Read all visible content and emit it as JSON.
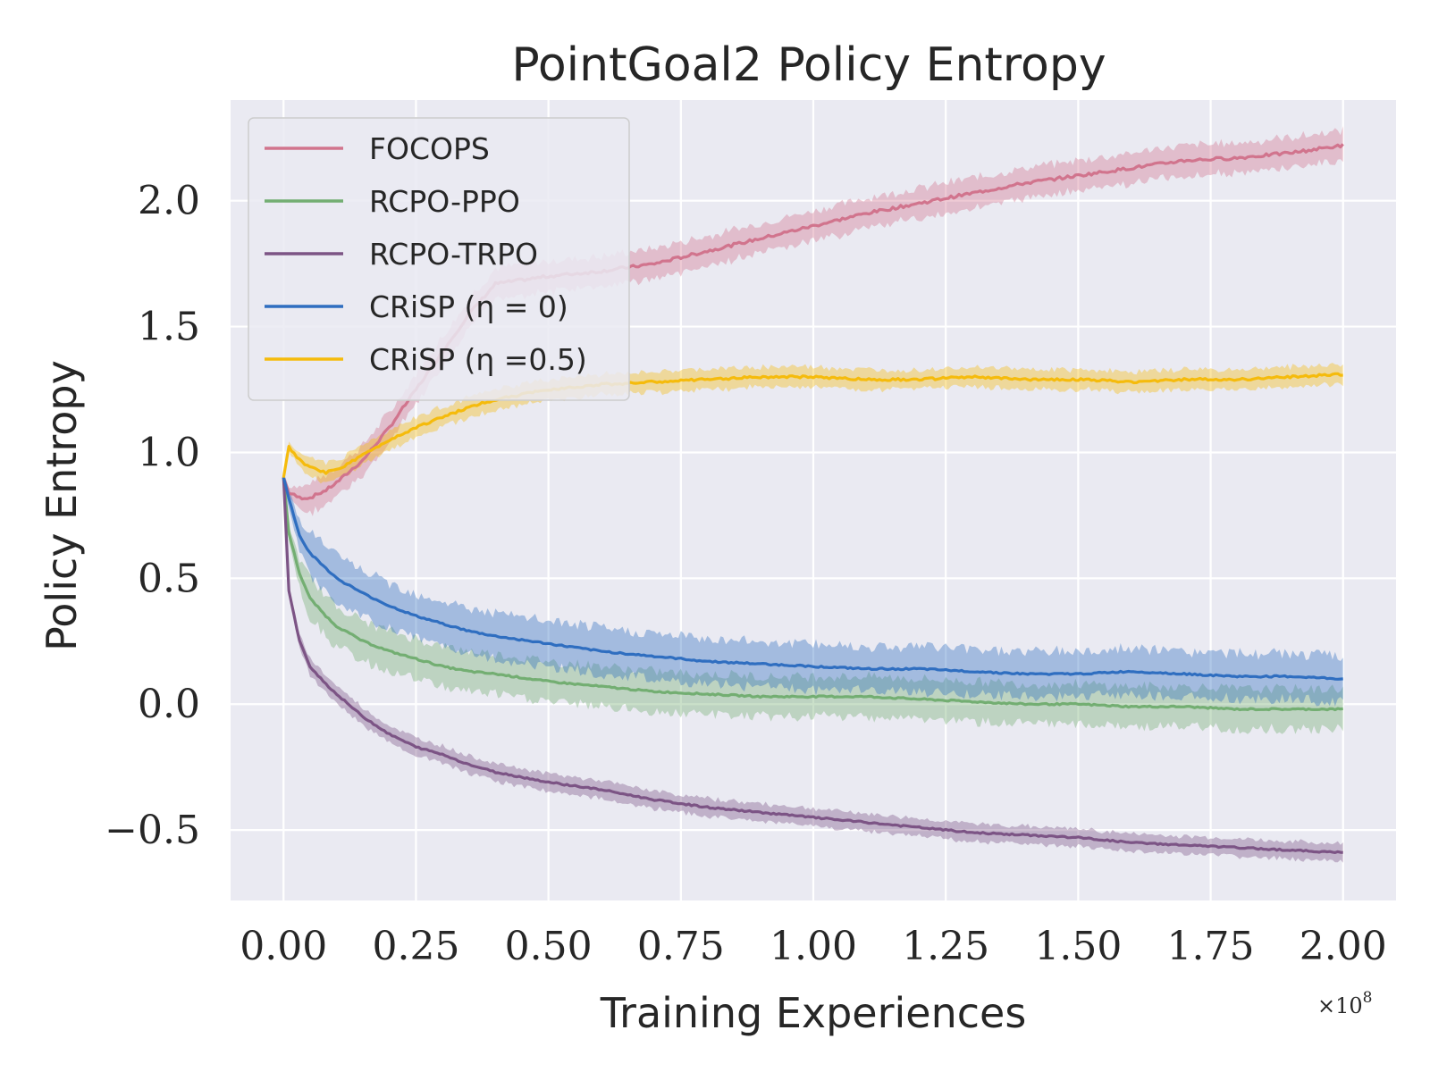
{
  "chart_data": {
    "type": "line",
    "title": "PointGoal2 Policy Entropy",
    "xlabel": "Training Experiences",
    "ylabel": "Policy Entropy",
    "x_scale_label": "×10",
    "x_scale_exponent": "8",
    "xlim": [
      -0.1,
      2.1
    ],
    "ylim": [
      -0.78,
      2.4
    ],
    "xticks": [
      0.0,
      0.25,
      0.5,
      0.75,
      1.0,
      1.25,
      1.5,
      1.75,
      2.0
    ],
    "xtick_labels": [
      "0.00",
      "0.25",
      "0.50",
      "0.75",
      "1.00",
      "1.25",
      "1.50",
      "1.75",
      "2.00"
    ],
    "yticks": [
      -0.5,
      0.0,
      0.5,
      1.0,
      1.5,
      2.0
    ],
    "ytick_labels": [
      "−0.5",
      "0.0",
      "0.5",
      "1.0",
      "1.5",
      "2.0"
    ],
    "grid": true,
    "legend_position": "top-left",
    "x": [
      0.0,
      0.01,
      0.03,
      0.05,
      0.08,
      0.1,
      0.15,
      0.2,
      0.25,
      0.3,
      0.35,
      0.4,
      0.5,
      0.6,
      0.7,
      0.8,
      0.9,
      1.0,
      1.1,
      1.2,
      1.3,
      1.4,
      1.5,
      1.6,
      1.7,
      1.8,
      1.9,
      2.0
    ],
    "series": [
      {
        "name": "FOCOPS",
        "color": "#d1748d",
        "values": [
          0.9,
          0.84,
          0.82,
          0.82,
          0.85,
          0.88,
          0.97,
          1.1,
          1.25,
          1.4,
          1.55,
          1.67,
          1.7,
          1.72,
          1.75,
          1.8,
          1.85,
          1.9,
          1.95,
          1.99,
          2.03,
          2.07,
          2.1,
          2.13,
          2.16,
          2.17,
          2.19,
          2.22
        ],
        "band": 0.06
      },
      {
        "name": "RCPO-PPO",
        "color": "#73ae72",
        "values": [
          0.9,
          0.68,
          0.52,
          0.42,
          0.35,
          0.31,
          0.25,
          0.21,
          0.18,
          0.15,
          0.13,
          0.12,
          0.09,
          0.07,
          0.05,
          0.04,
          0.03,
          0.03,
          0.03,
          0.02,
          0.01,
          0.0,
          0.0,
          -0.01,
          -0.01,
          -0.02,
          -0.02,
          -0.02
        ],
        "band": 0.08
      },
      {
        "name": "RCPO-TRPO",
        "color": "#7c5485",
        "values": [
          0.9,
          0.45,
          0.25,
          0.15,
          0.08,
          0.04,
          -0.05,
          -0.12,
          -0.17,
          -0.2,
          -0.24,
          -0.27,
          -0.31,
          -0.34,
          -0.38,
          -0.41,
          -0.43,
          -0.45,
          -0.47,
          -0.49,
          -0.51,
          -0.52,
          -0.53,
          -0.55,
          -0.56,
          -0.57,
          -0.58,
          -0.59
        ],
        "band": 0.035
      },
      {
        "name": "CRiSP (η = 0)",
        "color": "#2f6ec0",
        "values": [
          0.9,
          0.82,
          0.67,
          0.6,
          0.54,
          0.5,
          0.44,
          0.39,
          0.35,
          0.32,
          0.29,
          0.27,
          0.24,
          0.21,
          0.19,
          0.17,
          0.16,
          0.15,
          0.14,
          0.14,
          0.13,
          0.12,
          0.12,
          0.13,
          0.12,
          0.11,
          0.11,
          0.1
        ],
        "band": 0.09
      },
      {
        "name": "CRiSP (η =0.5)",
        "color": "#f5bb0c",
        "values": [
          0.9,
          1.02,
          0.97,
          0.94,
          0.92,
          0.93,
          0.99,
          1.05,
          1.1,
          1.14,
          1.18,
          1.21,
          1.25,
          1.27,
          1.28,
          1.29,
          1.3,
          1.3,
          1.29,
          1.29,
          1.3,
          1.29,
          1.29,
          1.28,
          1.29,
          1.29,
          1.3,
          1.31
        ],
        "band": 0.04
      }
    ]
  }
}
